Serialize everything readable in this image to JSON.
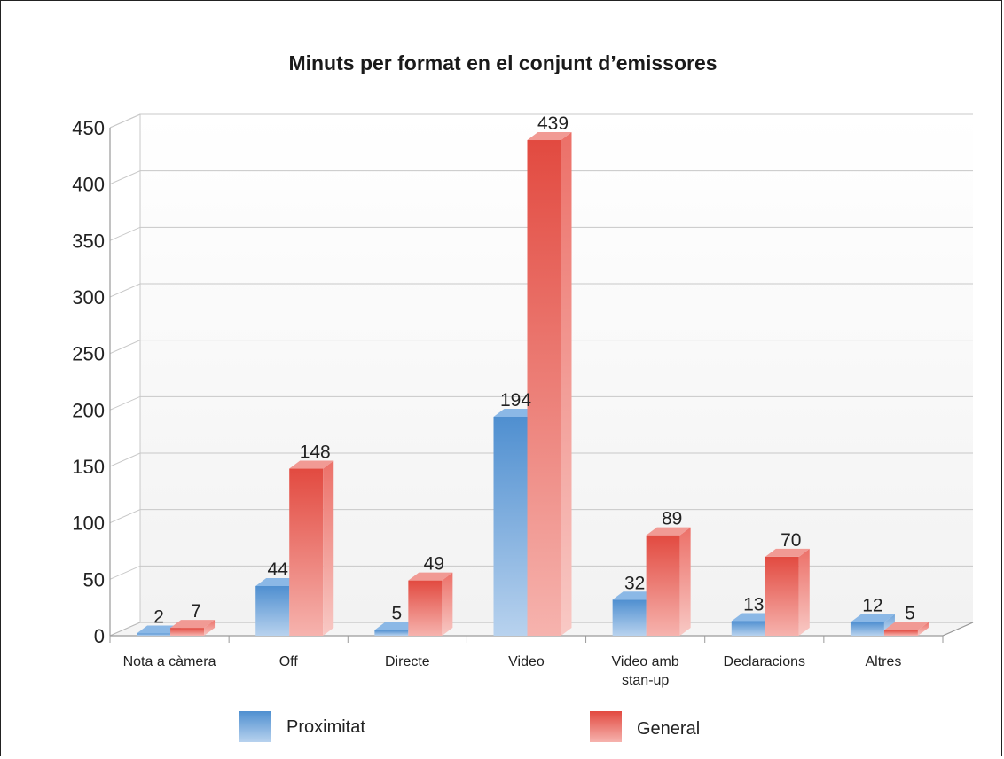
{
  "chart_data": {
    "type": "bar",
    "title": "Minuts per format en el conjunt d’emissores",
    "categories": [
      [
        "Nota a càmera"
      ],
      [
        "Off"
      ],
      [
        "Directe"
      ],
      [
        "Video"
      ],
      [
        "Video amb",
        "stan-up"
      ],
      [
        "Declaracions"
      ],
      [
        "Altres"
      ]
    ],
    "series": [
      {
        "name": "Proximitat",
        "values": [
          2,
          44,
          5,
          194,
          32,
          13,
          12
        ],
        "color": "#5b9bd5"
      },
      {
        "name": "General",
        "values": [
          7,
          148,
          49,
          439,
          89,
          70,
          5
        ],
        "color": "#e8574f"
      }
    ],
    "ylim": [
      0,
      450
    ],
    "yticks": [
      0,
      50,
      100,
      150,
      200,
      250,
      300,
      350,
      400,
      450
    ],
    "grid": true,
    "legend_position": "bottom",
    "style": "3d-bars"
  }
}
